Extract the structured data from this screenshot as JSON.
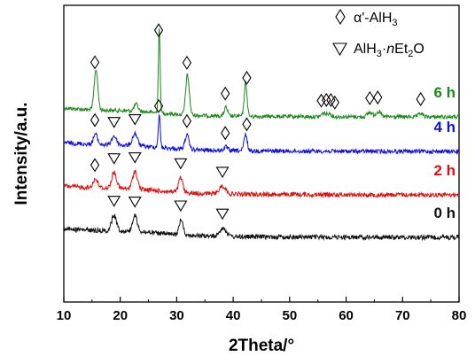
{
  "chart_data": {
    "type": "line",
    "xlabel": "2Theta/°",
    "ylabel": "Intensity/a.u.",
    "xlim": [
      10,
      80
    ],
    "xticks": [
      10,
      20,
      30,
      40,
      50,
      60,
      70,
      80
    ],
    "yticks_shown": false,
    "legend_position": "top-right",
    "legend": [
      {
        "marker": "diamond",
        "text": "α'-AlH",
        "sub": "3",
        "tail": ""
      },
      {
        "marker": "triangle-down",
        "text": "AlH",
        "sub": "3",
        "mid": "·",
        "italic": "n",
        "tail": "Et",
        "sub2": "2",
        "tail2": "O"
      }
    ],
    "series": [
      {
        "name": "6 h",
        "color": "#1a8a1a",
        "baseline": 132,
        "noise": 2.2,
        "peaks": [
          [
            15.7,
            46,
            0.45
          ],
          [
            22.8,
            8,
            0.5
          ],
          [
            26.9,
            95,
            0.22
          ],
          [
            31.9,
            45,
            0.45
          ],
          [
            38.7,
            10,
            0.4
          ],
          [
            42.2,
            38,
            0.35
          ],
          [
            56.0,
            4,
            0.5
          ],
          [
            57.0,
            4,
            0.5
          ],
          [
            64.2,
            5,
            0.6
          ],
          [
            65.7,
            6,
            0.6
          ],
          [
            73.2,
            4,
            0.5
          ]
        ],
        "markers": [
          {
            "type": "diamond",
            "x": [
              15.5,
              26.8,
              31.8,
              38.6,
              42.4,
              55.6,
              56.5,
              57.3,
              58.0,
              64.2,
              65.6,
              73.2
            ]
          }
        ]
      },
      {
        "name": "4 h",
        "color": "#1010e0",
        "baseline": 171,
        "noise": 2.4,
        "peaks": [
          [
            15.6,
            12,
            0.5
          ],
          [
            18.9,
            10,
            0.6
          ],
          [
            22.6,
            14,
            0.6
          ],
          [
            26.9,
            36,
            0.25
          ],
          [
            31.8,
            16,
            0.5
          ],
          [
            38.7,
            4,
            0.5
          ],
          [
            42.2,
            18,
            0.4
          ]
        ],
        "markers": [
          {
            "type": "diamond",
            "x": [
              15.5,
              26.8,
              31.8,
              38.6,
              42.4
            ]
          },
          {
            "type": "triangle-down",
            "x": [
              18.9,
              22.6
            ]
          }
        ]
      },
      {
        "name": "2 h",
        "color": "#e01010",
        "baseline": 220,
        "noise": 2.6,
        "peaks": [
          [
            15.6,
            10,
            0.6
          ],
          [
            18.9,
            18,
            0.6
          ],
          [
            22.6,
            20,
            0.6
          ],
          [
            30.7,
            17,
            0.5
          ],
          [
            38.1,
            9,
            0.8
          ]
        ],
        "markers": [
          {
            "type": "diamond",
            "x": [
              15.5
            ]
          },
          {
            "type": "triangle-down",
            "x": [
              18.9,
              22.6,
              30.7,
              38.1
            ]
          }
        ]
      },
      {
        "name": "0 h",
        "color": "#111111",
        "baseline": 268,
        "noise": 2.6,
        "peaks": [
          [
            18.9,
            18,
            0.6
          ],
          [
            22.6,
            18,
            0.6
          ],
          [
            30.8,
            18,
            0.5
          ],
          [
            38.2,
            10,
            0.8
          ]
        ],
        "markers": [
          {
            "type": "triangle-down",
            "x": [
              18.9,
              22.6,
              30.7,
              38.1
            ]
          }
        ]
      }
    ]
  }
}
